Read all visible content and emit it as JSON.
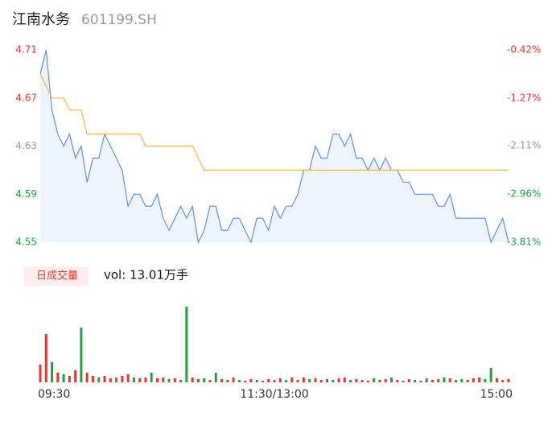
{
  "chart_data": [
    {
      "type": "line",
      "title": "江南水务",
      "subtitle": "601199.SH",
      "x": [
        0,
        3,
        6,
        9,
        12,
        15,
        18,
        21,
        24,
        27,
        30,
        33,
        36,
        39,
        42,
        45,
        48,
        51,
        54,
        57,
        60,
        63,
        66,
        69,
        72,
        75,
        78,
        81,
        84,
        87,
        90,
        93,
        96,
        99,
        102,
        105,
        108,
        111,
        114,
        117,
        120,
        123,
        126,
        129,
        132,
        135,
        138,
        141,
        144,
        147,
        150,
        153,
        156,
        159,
        162,
        165,
        168,
        171,
        174,
        177,
        180,
        183,
        186,
        189,
        192,
        195,
        198,
        201,
        204,
        207,
        210,
        213,
        216,
        219,
        222,
        225,
        228,
        231,
        234,
        237,
        240
      ],
      "xlim": [
        0,
        240
      ],
      "ylim": [
        4.55,
        4.71
      ],
      "yticks": [
        4.71,
        4.67,
        4.63,
        4.59,
        4.55
      ],
      "ytick_colors": [
        "#e8332e",
        "#e8332e",
        "#999999",
        "#1aa33a",
        "#1aa33a"
      ],
      "y2lim": [
        -3.81,
        -0.42
      ],
      "y2ticks": [
        {
          "value": -0.42,
          "label": "-0.42%"
        },
        {
          "value": -1.27,
          "label": "-1.27%"
        },
        {
          "value": -2.11,
          "label": "-2.11%"
        },
        {
          "value": -2.96,
          "label": "-2.96%"
        },
        {
          "value": -3.81,
          "label": "-3.81%"
        }
      ],
      "y2tick_colors": [
        "#e8332e",
        "#e8332e",
        "#999999",
        "#1aa33a",
        "#1aa33a"
      ],
      "area_color": "#eef4fd",
      "series": [
        {
          "name": "price",
          "color": "#5b8ff9",
          "values": [
            4.69,
            4.71,
            4.66,
            4.64,
            4.63,
            4.64,
            4.62,
            4.63,
            4.6,
            4.62,
            4.62,
            4.64,
            4.63,
            4.62,
            4.61,
            4.58,
            4.59,
            4.59,
            4.58,
            4.58,
            4.59,
            4.57,
            4.56,
            4.57,
            4.58,
            4.57,
            4.58,
            4.55,
            4.56,
            4.58,
            4.58,
            4.56,
            4.56,
            4.57,
            4.57,
            4.56,
            4.55,
            4.57,
            4.57,
            4.56,
            4.58,
            4.57,
            4.58,
            4.58,
            4.59,
            4.61,
            4.61,
            4.63,
            4.62,
            4.62,
            4.64,
            4.64,
            4.63,
            4.64,
            4.62,
            4.62,
            4.61,
            4.62,
            4.61,
            4.62,
            4.61,
            4.61,
            4.6,
            4.6,
            4.59,
            4.59,
            4.59,
            4.59,
            4.58,
            4.58,
            4.59,
            4.57,
            4.57,
            4.57,
            4.57,
            4.57,
            4.57,
            4.55,
            4.56,
            4.57,
            4.55
          ]
        },
        {
          "name": "average",
          "color": "#f7b733",
          "values": [
            4.69,
            4.68,
            4.67,
            4.67,
            4.67,
            4.66,
            4.66,
            4.66,
            4.64,
            4.64,
            4.64,
            4.64,
            4.64,
            4.64,
            4.64,
            4.64,
            4.64,
            4.64,
            4.63,
            4.63,
            4.63,
            4.63,
            4.63,
            4.63,
            4.63,
            4.63,
            4.63,
            4.62,
            4.61,
            4.61,
            4.61,
            4.61,
            4.61,
            4.61,
            4.61,
            4.61,
            4.61,
            4.61,
            4.61,
            4.61,
            4.61,
            4.61,
            4.61,
            4.61,
            4.61,
            4.61,
            4.61,
            4.61,
            4.61,
            4.61,
            4.61,
            4.61,
            4.61,
            4.61,
            4.61,
            4.61,
            4.61,
            4.61,
            4.61,
            4.61,
            4.61,
            4.61,
            4.61,
            4.61,
            4.61,
            4.61,
            4.61,
            4.61,
            4.61,
            4.61,
            4.61,
            4.61,
            4.61,
            4.61,
            4.61,
            4.61,
            4.61,
            4.61,
            4.61,
            4.61,
            4.61
          ]
        }
      ]
    },
    {
      "type": "bar",
      "legend_label": "日成交量",
      "volume_text": "vol: 13.01万手",
      "x": [
        0,
        3,
        6,
        9,
        12,
        15,
        18,
        21,
        24,
        27,
        30,
        33,
        36,
        39,
        42,
        45,
        48,
        51,
        54,
        57,
        60,
        63,
        66,
        69,
        72,
        75,
        78,
        81,
        84,
        87,
        90,
        93,
        96,
        99,
        102,
        105,
        108,
        111,
        114,
        117,
        120,
        123,
        126,
        129,
        132,
        135,
        138,
        141,
        144,
        147,
        150,
        153,
        156,
        159,
        162,
        165,
        168,
        171,
        174,
        177,
        180,
        183,
        186,
        189,
        192,
        195,
        198,
        201,
        204,
        207,
        210,
        213,
        216,
        219,
        222,
        225,
        228,
        231,
        234,
        237,
        240
      ],
      "xlim": [
        0,
        240
      ],
      "xticks": [
        {
          "value": 0,
          "label": "09:30"
        },
        {
          "value": 120,
          "label": "11:30/13:00"
        },
        {
          "value": 240,
          "label": "15:00"
        }
      ],
      "ylim": [
        0,
        10000
      ],
      "values": [
        2200,
        6000,
        2500,
        1200,
        1000,
        800,
        1500,
        6800,
        1200,
        800,
        600,
        800,
        500,
        600,
        800,
        1000,
        600,
        500,
        600,
        1200,
        500,
        600,
        400,
        500,
        300,
        9400,
        600,
        400,
        500,
        300,
        1200,
        400,
        300,
        600,
        300,
        200,
        400,
        300,
        200,
        400,
        300,
        500,
        300,
        600,
        300,
        600,
        400,
        500,
        300,
        400,
        300,
        500,
        600,
        300,
        400,
        300,
        200,
        500,
        300,
        400,
        600,
        300,
        200,
        400,
        300,
        200,
        500,
        300,
        400,
        600,
        500,
        300,
        400,
        300,
        500,
        600,
        400,
        1800,
        500,
        300,
        400
      ],
      "colors": [
        "#e8332e",
        "#e8332e",
        "#1aa33a",
        "#e8332e",
        "#1aa33a",
        "#e8332e",
        "#e8332e",
        "#1aa33a",
        "#e8332e",
        "#e8332e",
        "#1aa33a",
        "#e8332e",
        "#e8332e",
        "#1aa33a",
        "#e8332e",
        "#e8332e",
        "#1aa33a",
        "#e8332e",
        "#e8332e",
        "#1aa33a",
        "#e8332e",
        "#e8332e",
        "#1aa33a",
        "#e8332e",
        "#e8332e",
        "#1aa33a",
        "#e8332e",
        "#e8332e",
        "#1aa33a",
        "#e8332e",
        "#1aa33a",
        "#e8332e",
        "#e8332e",
        "#e8332e",
        "#1aa33a",
        "#e8332e",
        "#e8332e",
        "#1aa33a",
        "#e8332e",
        "#e8332e",
        "#e8332e",
        "#e8332e",
        "#1aa33a",
        "#e8332e",
        "#e8332e",
        "#e8332e",
        "#1aa33a",
        "#e8332e",
        "#e8332e",
        "#e8332e",
        "#1aa33a",
        "#e8332e",
        "#e8332e",
        "#1aa33a",
        "#e8332e",
        "#e8332e",
        "#e8332e",
        "#1aa33a",
        "#e8332e",
        "#e8332e",
        "#1aa33a",
        "#e8332e",
        "#e8332e",
        "#e8332e",
        "#1aa33a",
        "#e8332e",
        "#1aa33a",
        "#e8332e",
        "#e8332e",
        "#1aa33a",
        "#e8332e",
        "#e8332e",
        "#1aa33a",
        "#e8332e",
        "#e8332e",
        "#e8332e",
        "#1aa33a",
        "#1aa33a",
        "#e8332e",
        "#e8332e",
        "#e8332e"
      ]
    }
  ]
}
